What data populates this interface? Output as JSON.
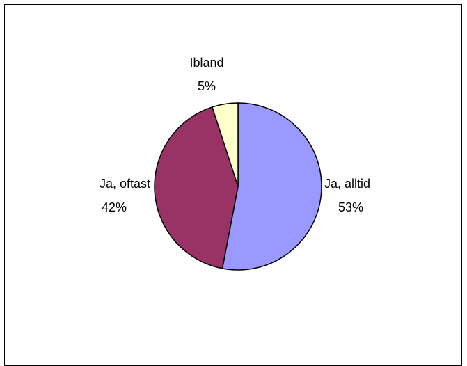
{
  "chart_data": {
    "type": "pie",
    "title": "",
    "slices": [
      {
        "label": "Ja, alltid",
        "value": 53,
        "value_label": "53%",
        "color": "#9999ff"
      },
      {
        "label": "Ja, oftast",
        "value": 42,
        "value_label": "42%",
        "color": "#993366"
      },
      {
        "label": "Ibland",
        "value": 5,
        "value_label": "5%",
        "color": "#ffffcc"
      }
    ],
    "start": "12 o'clock",
    "direction": "clockwise",
    "legend": "none",
    "slice_edge_color": "#000000"
  }
}
